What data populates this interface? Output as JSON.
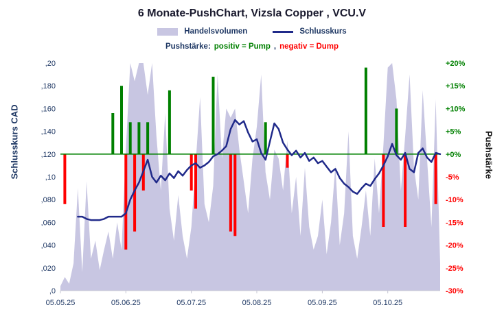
{
  "title": "6 Monate-PushChart,  Vizsla Copper , VCU.V",
  "legend": {
    "volume_label": "Handelsvolumen",
    "close_label": "Schlusskurs",
    "push_prefix": "Pushstärke:",
    "push_positive": "positiv = Pump",
    "push_separator": ",",
    "push_negative": "negativ = Dump"
  },
  "axes": {
    "left_title": "Schlusskurs CAD",
    "right_title": "Pushstärke"
  },
  "colors": {
    "navy": "#1f3864",
    "line_navy": "#202a8a",
    "green": "#008000",
    "red": "#ff0000",
    "volume_lavender": "#c8c6e2",
    "title_text": "#1a1a2e",
    "right_axis_text": "#111111"
  },
  "chart_data": {
    "type": "combo",
    "title": "6 Monate-PushChart, Vizsla Copper , VCU.V",
    "x_description": "Trading-day index 0-87 spanning 05.05.25 to 31.10.25; monthly ticks mapped via x_ticks.indices",
    "legend_position": "top",
    "grid": false,
    "left_ylim": [
      0,
      0.2
    ],
    "right_ylim": [
      -30,
      20
    ],
    "left_ticks": {
      "labels": [
        ",20",
        ",180",
        ",160",
        ",140",
        ",120",
        ",10",
        ",080",
        ",060",
        ",040",
        ",020",
        ",0"
      ],
      "values": [
        0.2,
        0.18,
        0.16,
        0.14,
        0.12,
        0.1,
        0.08,
        0.06,
        0.04,
        0.02,
        0.0
      ]
    },
    "right_ticks": {
      "labels": [
        "+20%",
        "+15%",
        "+10%",
        "+5%",
        "+0%",
        "-5%",
        "-10%",
        "-15%",
        "-20%",
        "-25%",
        "-30%"
      ],
      "values": [
        20,
        15,
        10,
        5,
        0,
        -5,
        -10,
        -15,
        -20,
        -25,
        -30
      ]
    },
    "x_ticks": {
      "labels": [
        "05.05.25",
        "05.06.25",
        "05.07.25",
        "05.08.25",
        "05.09.25",
        "05.10.25"
      ],
      "indices": [
        0,
        15,
        30,
        45,
        60,
        75
      ]
    },
    "series": [
      {
        "name": "Schlusskurs",
        "type": "line",
        "unit": "CAD",
        "values": [
          null,
          null,
          null,
          null,
          0.065,
          0.065,
          0.063,
          0.062,
          0.062,
          0.062,
          0.063,
          0.065,
          0.065,
          0.065,
          0.065,
          0.068,
          0.08,
          0.088,
          0.095,
          0.105,
          0.115,
          0.1,
          0.095,
          0.101,
          0.097,
          0.103,
          0.099,
          0.105,
          0.101,
          0.106,
          0.11,
          0.112,
          0.108,
          0.11,
          0.113,
          0.118,
          0.12,
          0.123,
          0.127,
          0.142,
          0.15,
          0.146,
          0.149,
          0.139,
          0.131,
          0.133,
          0.121,
          0.115,
          0.131,
          0.147,
          0.142,
          0.13,
          0.124,
          0.119,
          0.123,
          0.117,
          0.121,
          0.114,
          0.117,
          0.112,
          0.114,
          0.109,
          0.104,
          0.107,
          0.099,
          0.094,
          0.091,
          0.087,
          0.085,
          0.09,
          0.094,
          0.092,
          0.098,
          0.103,
          0.11,
          0.118,
          0.129,
          0.119,
          0.115,
          0.121,
          0.107,
          0.104,
          0.121,
          0.125,
          0.117,
          0.113,
          0.121,
          0.12
        ]
      },
      {
        "name": "Handelsvolumen",
        "type": "area",
        "unit": "relative volume, % of plot height (axis unlabeled in chart)",
        "values": [
          2,
          6,
          3,
          12,
          45,
          8,
          48,
          14,
          22,
          9,
          18,
          26,
          14,
          30,
          18,
          62,
          100,
          92,
          100,
          100,
          86,
          100,
          68,
          44,
          78,
          36,
          22,
          42,
          24,
          14,
          28,
          56,
          85,
          38,
          30,
          46,
          95,
          58,
          80,
          76,
          80,
          62,
          48,
          34,
          58,
          72,
          95,
          52,
          40,
          62,
          58,
          44,
          66,
          34,
          50,
          24,
          54,
          28,
          18,
          24,
          40,
          16,
          30,
          55,
          20,
          34,
          70,
          24,
          14,
          28,
          44,
          24,
          58,
          34,
          64,
          98,
          100,
          84,
          44,
          68,
          95,
          54,
          40,
          88,
          58,
          28,
          84,
          12
        ]
      },
      {
        "name": "Pushstärke",
        "type": "bar",
        "unit": "%",
        "values": [
          0,
          -11,
          0,
          0,
          0,
          0,
          0,
          0,
          0,
          0,
          0,
          0,
          9,
          0,
          15,
          -21,
          7,
          -17,
          7,
          -8,
          7,
          0,
          0,
          0,
          0,
          14,
          0,
          0,
          0,
          0,
          -8,
          -12,
          0,
          0,
          0,
          17,
          0,
          0,
          0,
          -17,
          -18,
          0,
          0,
          0,
          0,
          0,
          0,
          7,
          0,
          0,
          0,
          0,
          -3,
          0,
          0,
          0,
          0,
          0,
          0,
          0,
          0,
          0,
          0,
          0,
          0,
          0,
          0,
          0,
          0,
          0,
          19,
          0,
          0,
          0,
          -16,
          0,
          0,
          10,
          0,
          -16,
          0,
          0,
          0,
          0,
          0,
          0,
          -11,
          0
        ]
      }
    ]
  }
}
